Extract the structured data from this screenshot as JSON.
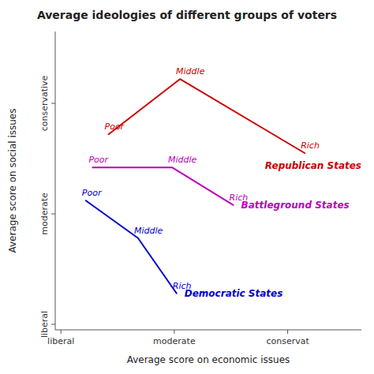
{
  "chart_data": {
    "type": "line",
    "title": "Average ideologies of different groups of voters",
    "x_label": "Average score on economic issues",
    "y_label": "Average score on social issues",
    "xlim": [
      -0.05,
      2.65
    ],
    "ylim": [
      -0.05,
      2.65
    ],
    "xticks": [
      {
        "value": 0,
        "label": "liberal"
      },
      {
        "value": 1,
        "label": "moderate"
      },
      {
        "value": 2,
        "label": "conservat"
      }
    ],
    "yticks": [
      {
        "value": 0,
        "label": "liberal"
      },
      {
        "value": 1,
        "label": "moderate"
      },
      {
        "value": 2,
        "label": "conservative"
      }
    ],
    "grid": false,
    "series": [
      {
        "name": "Republican States",
        "color": "#cc0000",
        "x": [
          0.42,
          1.05,
          2.15
        ],
        "values": [
          1.72,
          2.22,
          1.55
        ],
        "point_labels": [
          "Poor",
          "Middle",
          "Rich"
        ]
      },
      {
        "name": "Battleground States",
        "color": "#bb00bb",
        "x": [
          0.28,
          0.98,
          1.52
        ],
        "values": [
          1.42,
          1.42,
          1.08
        ],
        "point_labels": [
          "Poor",
          "Middle",
          "Rich"
        ]
      },
      {
        "name": "Democratic States",
        "color": "#0000cc",
        "x": [
          0.22,
          0.68,
          1.02
        ],
        "values": [
          1.12,
          0.78,
          0.28
        ],
        "point_labels": [
          "Poor",
          "Middle",
          "Rich"
        ]
      }
    ]
  }
}
